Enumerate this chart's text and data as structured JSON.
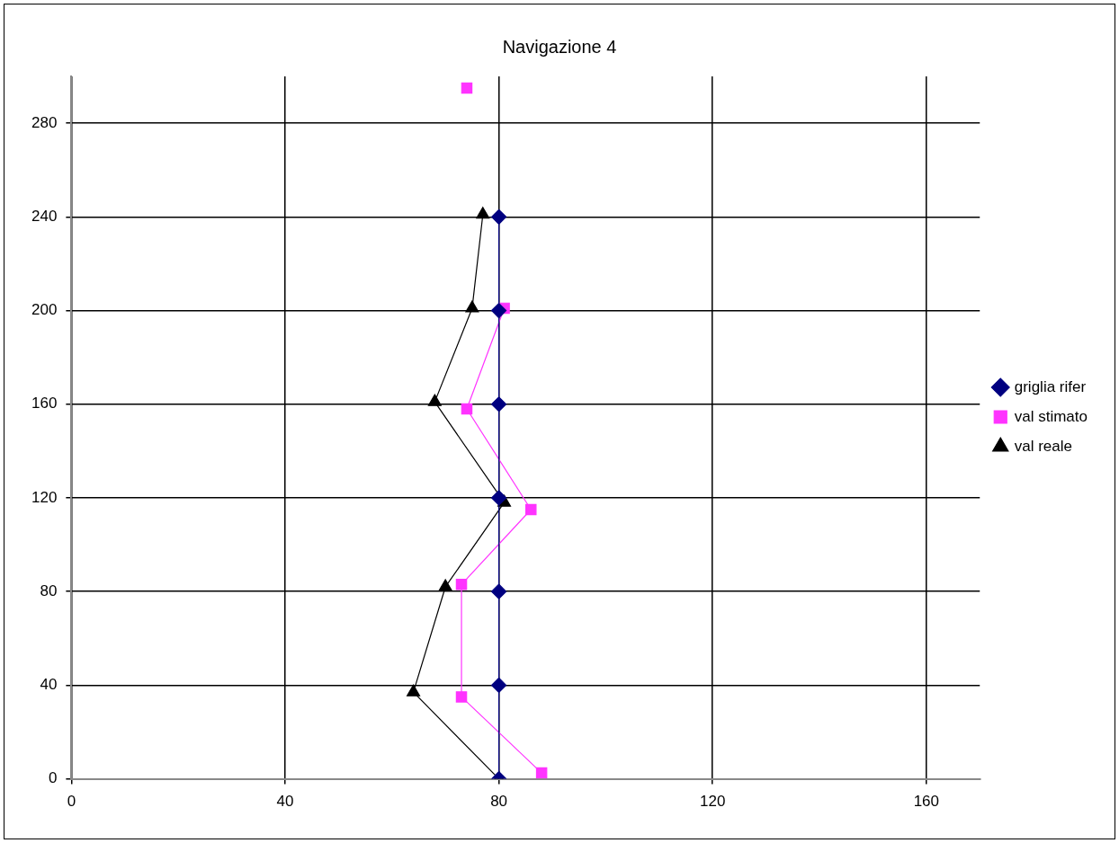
{
  "chart_data": {
    "type": "line",
    "title": "Navigazione 4",
    "xlim": [
      0,
      170
    ],
    "xticks": [
      0,
      40,
      80,
      120,
      160
    ],
    "ylim": [
      0,
      300
    ],
    "yticks": [
      0,
      40,
      80,
      120,
      160,
      200,
      240,
      280
    ],
    "grid": true,
    "legend": "right",
    "series": [
      {
        "name": "griglia rifer",
        "marker": "diamond",
        "color": "#000080",
        "x": [
          80,
          80,
          80,
          80,
          80,
          80,
          80
        ],
        "values": [
          0,
          40,
          80,
          120,
          160,
          200,
          240
        ]
      },
      {
        "name": "val stimato",
        "marker": "square",
        "color": "#ff33ff",
        "x": [
          88,
          73,
          73,
          86,
          74,
          81,
          null,
          74
        ],
        "values": [
          2.5,
          35,
          83,
          115,
          158,
          201,
          null,
          295
        ]
      },
      {
        "name": "val reale",
        "marker": "triangle",
        "color": "#000000",
        "x": [
          80,
          64,
          70,
          81,
          68,
          75,
          77
        ],
        "values": [
          0,
          37,
          82,
          118,
          161,
          201,
          241
        ]
      }
    ]
  }
}
